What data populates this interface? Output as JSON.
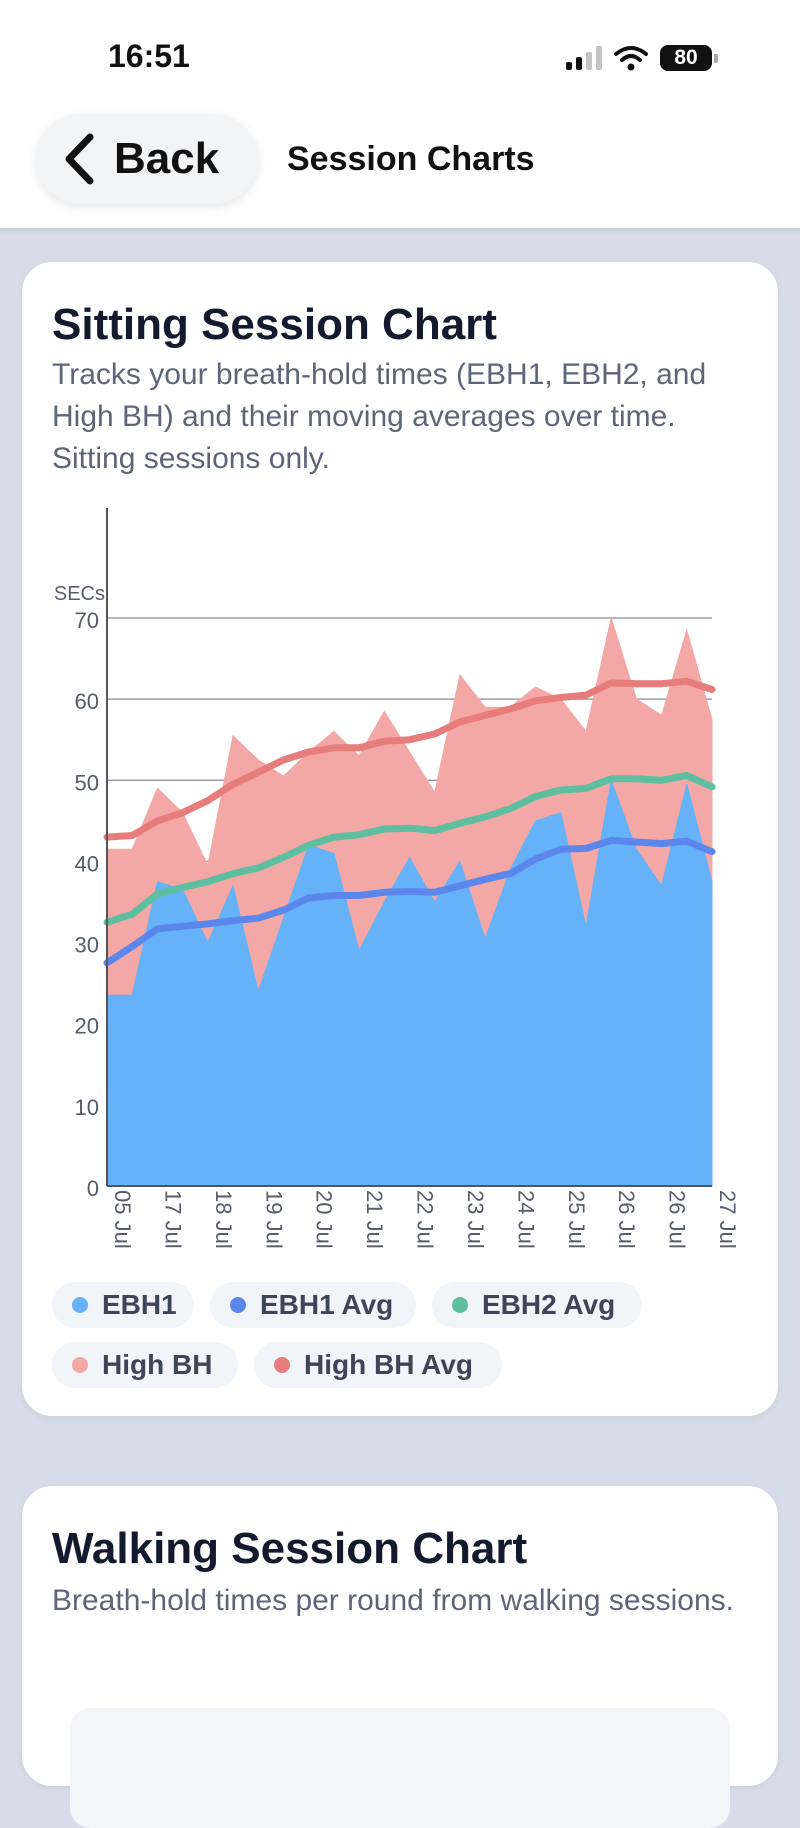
{
  "status": {
    "time": "16:51",
    "battery": "80"
  },
  "header": {
    "back_label": "Back",
    "title": "Session Charts"
  },
  "sitting": {
    "title": "Sitting Session Chart",
    "description": "Tracks your breath-hold times (EBH1, EBH2, and High BH) and their moving averages over time. Sitting sessions only."
  },
  "walking": {
    "title": "Walking Session Chart",
    "description": "Breath-hold times per round from walking sessions."
  },
  "chart_data": {
    "type": "area",
    "ylabel": "SECs",
    "ylim": [
      0,
      70
    ],
    "y_ticks": [
      0,
      10,
      20,
      30,
      40,
      50,
      60,
      70
    ],
    "x": [
      0,
      0.5,
      1,
      1.5,
      2,
      2.5,
      3,
      3.5,
      4,
      4.5,
      5,
      5.5,
      6,
      6.5,
      7,
      7.5,
      8,
      8.5,
      9,
      9.5,
      10,
      10.5,
      11,
      11.5,
      12
    ],
    "x_ticks": [
      {
        "x": 0,
        "label": "05 Jul"
      },
      {
        "x": 1,
        "label": "17 Jul"
      },
      {
        "x": 2,
        "label": "18 Jul"
      },
      {
        "x": 3,
        "label": "19 Jul"
      },
      {
        "x": 4,
        "label": "20 Jul"
      },
      {
        "x": 5,
        "label": "21 Jul"
      },
      {
        "x": 6,
        "label": "22 Jul"
      },
      {
        "x": 7,
        "label": "23 Jul"
      },
      {
        "x": 8,
        "label": "24 Jul"
      },
      {
        "x": 9,
        "label": "25 Jul"
      },
      {
        "x": 10,
        "label": "26 Jul"
      },
      {
        "x": 11,
        "label": "26 Jul"
      },
      {
        "x": 12,
        "label": "27 Jul"
      }
    ],
    "series": [
      {
        "name": "EBH1",
        "kind": "area",
        "color": "#66b2f8",
        "values": [
          23.5,
          23.5,
          37.5,
          36.5,
          30,
          37,
          24,
          33,
          42,
          41,
          29,
          35,
          40.5,
          35,
          40,
          30.5,
          39,
          45,
          46,
          32,
          50,
          41.5,
          37,
          49.5,
          37.5
        ]
      },
      {
        "name": "EBH1 Avg",
        "kind": "line",
        "color": "#5b86ec",
        "values": [
          27.5,
          29.5,
          31.7,
          32,
          32.3,
          32.7,
          33,
          34,
          35.5,
          35.8,
          35.8,
          36.2,
          36.3,
          36.2,
          37,
          37.8,
          38.5,
          40.3,
          41.5,
          41.6,
          42.6,
          42.4,
          42.2,
          42.5,
          41.2
        ]
      },
      {
        "name": "EBH2 Avg",
        "kind": "line",
        "color": "#5dbf9f",
        "values": [
          32.5,
          33.5,
          36,
          36.8,
          37.5,
          38.5,
          39.2,
          40.5,
          42,
          43,
          43.3,
          44,
          44.1,
          43.8,
          44.7,
          45.5,
          46.5,
          48,
          48.8,
          49,
          50.2,
          50.2,
          50,
          50.6,
          49.2
        ]
      },
      {
        "name": "High BH",
        "kind": "area",
        "color": "#f4a8a6",
        "values": [
          41.5,
          41.5,
          49,
          46,
          39.5,
          55.5,
          52.5,
          50.5,
          53.5,
          56,
          53,
          58.5,
          53.5,
          48.5,
          63,
          59,
          59,
          61.5,
          60,
          56,
          70,
          60,
          58,
          68.5,
          57.5
        ]
      },
      {
        "name": "High BH Avg",
        "kind": "line",
        "color": "#e67c7c",
        "values": [
          43,
          43.2,
          45,
          46,
          47.5,
          49.5,
          51,
          52.5,
          53.5,
          54,
          54,
          54.8,
          55,
          55.7,
          57.2,
          58,
          58.8,
          59.8,
          60.2,
          60.5,
          62,
          61.9,
          61.9,
          62.2,
          61.2
        ]
      }
    ],
    "legend": [
      {
        "name": "EBH1",
        "color": "#66b2f8"
      },
      {
        "name": "EBH1 Avg",
        "color": "#5b86ec"
      },
      {
        "name": "EBH2 Avg",
        "color": "#5dbf9f"
      },
      {
        "name": "High BH",
        "color": "#f4a8a6"
      },
      {
        "name": "High BH Avg",
        "color": "#e67c7c"
      }
    ],
    "grid": true,
    "legend_placement": "bottom"
  }
}
